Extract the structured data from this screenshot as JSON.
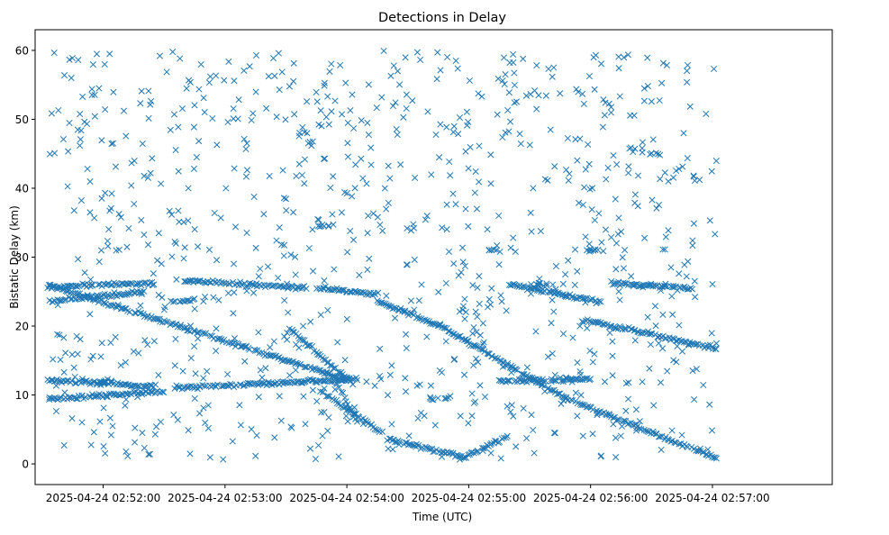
{
  "chart_data": {
    "type": "scatter",
    "title": "Detections in Delay",
    "xlabel": "Time (UTC)",
    "ylabel": "Bistatic Delay (km)",
    "marker": "x",
    "color": "#1f77b4",
    "x_unit": "seconds after 2025-04-24 02:52:00",
    "xlim": [
      -33.5,
      359
    ],
    "ylim": [
      -3,
      63
    ],
    "x_ticks": [
      {
        "value": 0,
        "label": "2025-04-24 02:52:00"
      },
      {
        "value": 60,
        "label": "2025-04-24 02:53:00"
      },
      {
        "value": 120,
        "label": "2025-04-24 02:54:00"
      },
      {
        "value": 180,
        "label": "2025-04-24 02:55:00"
      },
      {
        "value": 240,
        "label": "2025-04-24 02:56:00"
      },
      {
        "value": 300,
        "label": "2025-04-24 02:57:00"
      }
    ],
    "y_ticks": [
      {
        "value": 0,
        "label": "0"
      },
      {
        "value": 10,
        "label": "10"
      },
      {
        "value": 20,
        "label": "20"
      },
      {
        "value": 30,
        "label": "30"
      },
      {
        "value": 40,
        "label": "40"
      },
      {
        "value": 50,
        "label": "50"
      },
      {
        "value": 60,
        "label": "60"
      }
    ],
    "time_range": [
      -27,
      302
    ],
    "track_segments": [
      {
        "x": [
          -27,
          119
        ],
        "y": [
          26,
          12.3
        ]
      },
      {
        "x": [
          92,
          121
        ],
        "y": [
          19.5,
          12.2
        ]
      },
      {
        "x": [
          107,
          137
        ],
        "y": [
          10.5,
          4.6
        ]
      },
      {
        "x": [
          135,
          166
        ],
        "y": [
          23.6,
          20
        ]
      },
      {
        "x": [
          166,
          228
        ],
        "y": [
          20,
          9.5
        ]
      },
      {
        "x": [
          228,
          302
        ],
        "y": [
          9.5,
          0.8
        ]
      },
      {
        "x": [
          114,
          125
        ],
        "y": [
          12.3,
          6
        ]
      },
      {
        "x": [
          140,
          178
        ],
        "y": [
          3.6,
          1
        ]
      },
      {
        "x": [
          178,
          199
        ],
        "y": [
          1,
          4
        ]
      },
      {
        "x": [
          -27,
          25
        ],
        "y": [
          12.2,
          11.2
        ]
      },
      {
        "x": [
          35,
          125
        ],
        "y": [
          11,
          12.3
        ]
      },
      {
        "x": [
          -27,
          30
        ],
        "y": [
          9.4,
          10.5
        ]
      },
      {
        "x": [
          -27,
          25
        ],
        "y": [
          25.7,
          26.2
        ]
      },
      {
        "x": [
          40,
          100
        ],
        "y": [
          26.6,
          25.5
        ]
      },
      {
        "x": [
          -27,
          20
        ],
        "y": [
          23.6,
          25
        ]
      },
      {
        "x": [
          235,
          302
        ],
        "y": [
          21,
          16.7
        ]
      },
      {
        "x": [
          200,
          245
        ],
        "y": [
          26,
          23.5
        ]
      },
      {
        "x": [
          250,
          290
        ],
        "y": [
          26.3,
          25.5
        ]
      },
      {
        "x": [
          195,
          240
        ],
        "y": [
          12,
          12.3
        ]
      },
      {
        "x": [
          105,
          135
        ],
        "y": [
          25.5,
          24.7
        ]
      }
    ],
    "clusters": [
      {
        "x": 109,
        "y": 34.5,
        "n": 8
      },
      {
        "x": 192,
        "y": 31,
        "n": 6
      },
      {
        "x": 240,
        "y": 31,
        "n": 10
      },
      {
        "x": 165,
        "y": 9.5,
        "n": 8
      },
      {
        "x": 215,
        "y": 26.1,
        "n": 10
      },
      {
        "x": 40,
        "y": 23.6,
        "n": 10
      },
      {
        "x": 0,
        "y": 12,
        "n": 8
      },
      {
        "x": 272,
        "y": 45,
        "n": 5
      }
    ],
    "noise_points": 900,
    "noise_y_range": [
      0.5,
      60
    ]
  }
}
